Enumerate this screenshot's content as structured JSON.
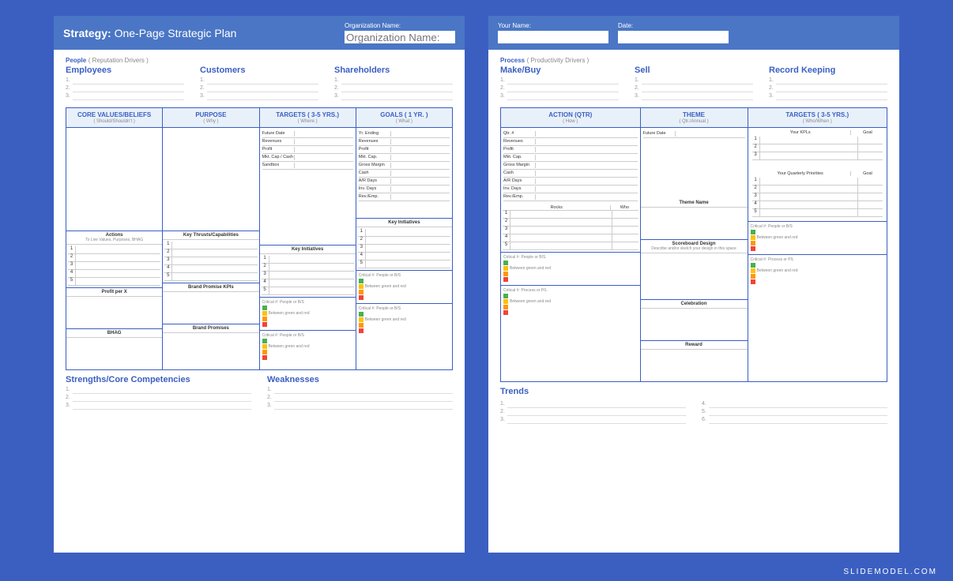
{
  "colors": {
    "bg": "#3b5fc1",
    "accent": "#4a76c5",
    "text_accent": "#3b5fc1",
    "light": "#e8f0fa"
  },
  "watermark": "SLIDEMODEL.COM",
  "page1": {
    "title_bold": "Strategy:",
    "title_rest": " One-Page Strategic Plan",
    "org_label": "Organization Name:",
    "section": "People",
    "section_sub": "( Reputation Drivers )",
    "cols": [
      "Employees",
      "Customers",
      "Shareholders"
    ],
    "grid": [
      {
        "h": "CORE VALUES/BELIEFS",
        "s": "( Should/Shouldn't )"
      },
      {
        "h": "PURPOSE",
        "s": "( Why )"
      },
      {
        "h": "TARGETS ( 3-5 YRS.)",
        "s": "( Where )"
      },
      {
        "h": "GOALS ( 1 YR. )",
        "s": "( What )"
      }
    ],
    "targets_rows": [
      "Future Date",
      "Revenues",
      "Profit",
      "Mkt. Cap / Cash",
      "Sandbox"
    ],
    "goals_rows": [
      "Yr. Ending",
      "Revenues",
      "Profit",
      "Mkt. Cap.",
      "Gross Margin",
      "Cash",
      "A/R Days",
      "Inv. Days",
      "Rev./Emp."
    ],
    "actions_h": "Actions",
    "actions_s": "To Live Values, Purposes, BHAG",
    "thrusts_h": "Key Thrusts/Capabilities",
    "initiatives_h": "Key Initiatives",
    "profit_h": "Profit per X",
    "brand_kpi_h": "Brand Promise KPIs",
    "bhag_h": "BHAG",
    "brand_promises_h": "Brand Promises",
    "crit1": "Critical #:",
    "crit1_s": "People or B/S",
    "crit2": "Critical #:",
    "crit2_s": "People or B/S",
    "between": "Between green and red",
    "bottom": [
      "Strengths/Core Competencies",
      "Weaknesses"
    ]
  },
  "page2": {
    "name_label": "Your Name:",
    "date_label": "Date:",
    "section": "Process",
    "section_sub": "( Productivity Drivers )",
    "cols": [
      "Make/Buy",
      "Sell",
      "Record Keeping"
    ],
    "grid": [
      {
        "h": "ACTION (QTR)",
        "s": "( How )"
      },
      {
        "h": "THEME",
        "s": "( Qtr./Annual )"
      },
      {
        "h": "TARGETS ( 3-5 YRS.)",
        "s": "( Who/When )"
      }
    ],
    "action_rows": [
      "Qtr. #",
      "Revenues",
      "Profit",
      "Mkt. Cap.",
      "Gross Margin",
      "Cash",
      "A/R Days",
      "Inv. Days",
      "Rev./Emp."
    ],
    "theme_rows": [
      "Future Date"
    ],
    "theme_name": "Theme Name",
    "kpi_h1": "Your KPLs",
    "kpi_h2": "Goal",
    "qp_h1": "Your Quarterly Priorities",
    "qp_h2": "Goal",
    "rocks_h": "Rocks",
    "rocks_who": "Who",
    "score_h": "Scoreboard Design",
    "score_s": "Describe and/or sketch your design in this space",
    "celebration_h": "Celebration",
    "reward_h": "Reward",
    "crit1": "Critical #:",
    "crit1_s": "People or B/S",
    "crit2": "Critical #:",
    "crit2_s": "Process or P/L",
    "between": "Between green and red",
    "trends": "Trends"
  }
}
